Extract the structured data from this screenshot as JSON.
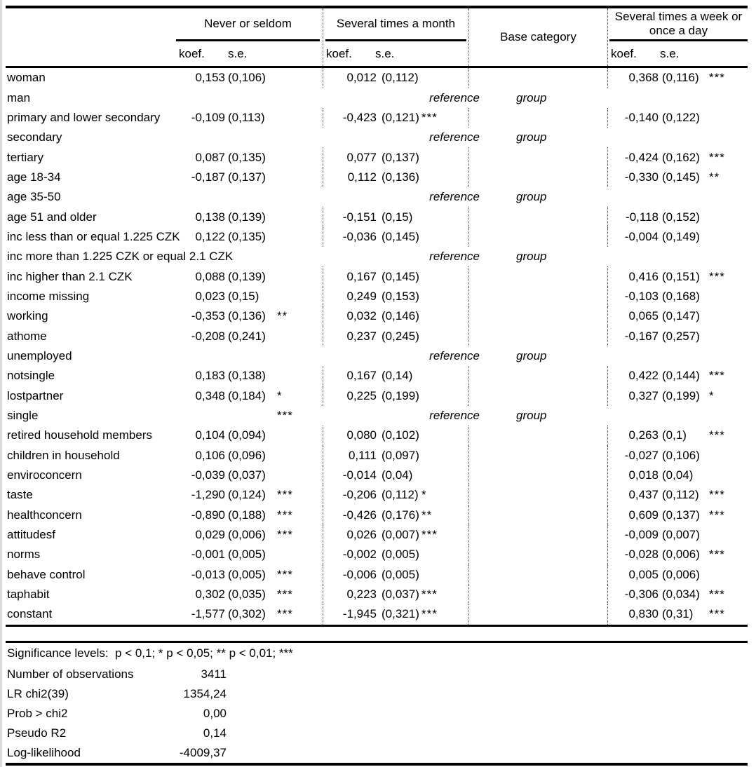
{
  "colors": {
    "text": "#000000",
    "rules": "#000000",
    "dotted_dividers": "#404040",
    "sheet_left_edge": "#d9d9d9",
    "background": "#ffffff"
  },
  "table": {
    "col_groups": [
      {
        "label": "Never or seldom",
        "sub": [
          "koef.",
          "s.e."
        ]
      },
      {
        "label": "Several times a month",
        "sub": [
          "koef.",
          "s.e."
        ]
      },
      {
        "label": "Base category"
      },
      {
        "label": "Several times a week or once a day",
        "sub": [
          "koef.",
          "s.e."
        ]
      }
    ],
    "reference_text": {
      "word1": "reference",
      "word2": "group"
    },
    "rows": [
      {
        "label": "woman",
        "g1": {
          "koef": "0,153",
          "se": "(0,106)",
          "stars": ""
        },
        "g2": {
          "koef": "0,012",
          "se": "(0,112)",
          "stars": ""
        },
        "g3": {
          "koef": "0,368",
          "se": "(0,116)",
          "stars": "***"
        }
      },
      {
        "label": "man",
        "reference": true,
        "g1_stars": ""
      },
      {
        "label": "primary and lower secondary",
        "g1": {
          "koef": "-0,109",
          "se": "(0,113)",
          "stars": ""
        },
        "g2": {
          "koef": "-0,423",
          "se": "(0,121)",
          "stars": "***"
        },
        "g3": {
          "koef": "-0,140",
          "se": "(0,122)",
          "stars": ""
        }
      },
      {
        "label": "secondary",
        "reference": true,
        "g1_stars": ""
      },
      {
        "label": "tertiary",
        "g1": {
          "koef": "0,087",
          "se": "(0,135)",
          "stars": ""
        },
        "g2": {
          "koef": "0,077",
          "se": "(0,137)",
          "stars": ""
        },
        "g3": {
          "koef": "-0,424",
          "se": "(0,162)",
          "stars": "***"
        }
      },
      {
        "label": "age 18-34",
        "g1": {
          "koef": "-0,187",
          "se": "(0,137)",
          "stars": ""
        },
        "g2": {
          "koef": "0,112",
          "se": "(0,136)",
          "stars": ""
        },
        "g3": {
          "koef": "-0,330",
          "se": "(0,145)",
          "stars": "**"
        }
      },
      {
        "label": "age 35-50",
        "reference": true,
        "g1_stars": ""
      },
      {
        "label": "age 51 and older",
        "g1": {
          "koef": "0,138",
          "se": "(0,139)",
          "stars": ""
        },
        "g2": {
          "koef": "-0,151",
          "se": "(0,15)",
          "stars": ""
        },
        "g3": {
          "koef": "-0,118",
          "se": "(0,152)",
          "stars": ""
        }
      },
      {
        "label": "inc less than or equal 1.225 CZK",
        "g1": {
          "koef": "0,122",
          "se": "(0,135)",
          "stars": ""
        },
        "g2": {
          "koef": "-0,036",
          "se": "(0,145)",
          "stars": ""
        },
        "g3": {
          "koef": "-0,004",
          "se": "(0,149)",
          "stars": ""
        }
      },
      {
        "label": "inc more than 1.225 CZK or equal 2.1 CZK",
        "reference": true,
        "g1_stars": ""
      },
      {
        "label": "inc higher than 2.1 CZK",
        "g1": {
          "koef": "0,088",
          "se": "(0,139)",
          "stars": ""
        },
        "g2": {
          "koef": "0,167",
          "se": "(0,145)",
          "stars": ""
        },
        "g3": {
          "koef": "0,416",
          "se": "(0,151)",
          "stars": "***"
        }
      },
      {
        "label": "income missing",
        "g1": {
          "koef": "0,023",
          "se": "(0,15)",
          "stars": ""
        },
        "g2": {
          "koef": "0,249",
          "se": "(0,153)",
          "stars": ""
        },
        "g3": {
          "koef": "-0,103",
          "se": "(0,168)",
          "stars": ""
        }
      },
      {
        "label": "working",
        "g1": {
          "koef": "-0,353",
          "se": "(0,136)",
          "stars": "**"
        },
        "g2": {
          "koef": "0,032",
          "se": "(0,146)",
          "stars": ""
        },
        "g3": {
          "koef": "0,065",
          "se": "(0,147)",
          "stars": ""
        }
      },
      {
        "label": "athome",
        "g1": {
          "koef": "-0,208",
          "se": "(0,241)",
          "stars": ""
        },
        "g2": {
          "koef": "0,237",
          "se": "(0,245)",
          "stars": ""
        },
        "g3": {
          "koef": "-0,167",
          "se": "(0,257)",
          "stars": ""
        }
      },
      {
        "label": "unemployed",
        "reference": true,
        "g1_stars": ""
      },
      {
        "label": "notsingle",
        "g1": {
          "koef": "0,183",
          "se": "(0,138)",
          "stars": ""
        },
        "g2": {
          "koef": "0,167",
          "se": "(0,14)",
          "stars": ""
        },
        "g3": {
          "koef": "0,422",
          "se": "(0,144)",
          "stars": "***"
        }
      },
      {
        "label": "lostpartner",
        "g1": {
          "koef": "0,348",
          "se": "(0,184)",
          "stars": "*"
        },
        "g2": {
          "koef": "0,225",
          "se": "(0,199)",
          "stars": ""
        },
        "g3": {
          "koef": "0,327",
          "se": "(0,199)",
          "stars": "*"
        }
      },
      {
        "label": "single",
        "reference": true,
        "g1_stars": "***"
      },
      {
        "label": "retired household members",
        "g1": {
          "koef": "0,104",
          "se": "(0,094)",
          "stars": ""
        },
        "g2": {
          "koef": "0,080",
          "se": "(0,102)",
          "stars": ""
        },
        "g3": {
          "koef": "0,263",
          "se": "(0,1)",
          "stars": "***"
        }
      },
      {
        "label": "children in household",
        "g1": {
          "koef": "0,106",
          "se": "(0,096)",
          "stars": ""
        },
        "g2": {
          "koef": "0,111",
          "se": "(0,097)",
          "stars": ""
        },
        "g3": {
          "koef": "-0,027",
          "se": "(0,106)",
          "stars": ""
        }
      },
      {
        "label": "enviroconcern",
        "g1": {
          "koef": "-0,039",
          "se": "(0,037)",
          "stars": ""
        },
        "g2": {
          "koef": "-0,014",
          "se": "(0,04)",
          "stars": ""
        },
        "g3": {
          "koef": "0,018",
          "se": "(0,04)",
          "stars": ""
        }
      },
      {
        "label": "taste",
        "g1": {
          "koef": "-1,290",
          "se": "(0,124)",
          "stars": "***"
        },
        "g2": {
          "koef": "-0,206",
          "se": "(0,112)",
          "stars": "*"
        },
        "g3": {
          "koef": "0,437",
          "se": "(0,112)",
          "stars": "***"
        }
      },
      {
        "label": "healthconcern",
        "g1": {
          "koef": "-0,890",
          "se": "(0,188)",
          "stars": "***"
        },
        "g2": {
          "koef": "-0,426",
          "se": "(0,176)",
          "stars": "**"
        },
        "g3": {
          "koef": "0,609",
          "se": "(0,137)",
          "stars": "***"
        }
      },
      {
        "label": "attitudesf",
        "g1": {
          "koef": "0,029",
          "se": "(0,006)",
          "stars": "***"
        },
        "g2": {
          "koef": "0,026",
          "se": "(0,007)",
          "stars": "***"
        },
        "g3": {
          "koef": "-0,009",
          "se": "(0,007)",
          "stars": ""
        }
      },
      {
        "label": "norms",
        "g1": {
          "koef": "-0,001",
          "se": "(0,005)",
          "stars": ""
        },
        "g2": {
          "koef": "-0,002",
          "se": "(0,005)",
          "stars": ""
        },
        "g3": {
          "koef": "-0,028",
          "se": "(0,006)",
          "stars": "***"
        }
      },
      {
        "label": "behave control",
        "g1": {
          "koef": "-0,013",
          "se": "(0,005)",
          "stars": "***"
        },
        "g2": {
          "koef": "-0,006",
          "se": "(0,005)",
          "stars": ""
        },
        "g3": {
          "koef": "0,005",
          "se": "(0,006)",
          "stars": ""
        }
      },
      {
        "label": "taphabit",
        "g1": {
          "koef": "0,302",
          "se": "(0,035)",
          "stars": "***"
        },
        "g2": {
          "koef": "0,223",
          "se": "(0,037)",
          "stars": "***"
        },
        "g3": {
          "koef": "-0,306",
          "se": "(0,034)",
          "stars": "***"
        }
      },
      {
        "label": "constant",
        "g1": {
          "koef": "-1,577",
          "se": "(0,302)",
          "stars": "***"
        },
        "g2": {
          "koef": "-1,945",
          "se": "(0,321)",
          "stars": "***"
        },
        "g3": {
          "koef": "0,830",
          "se": "(0,31)",
          "stars": "***"
        }
      }
    ]
  },
  "footer": {
    "significance": "Significance levels:  p < 0,1; * p < 0,05; ** p < 0,01; ***",
    "stats": [
      {
        "label": "Number of observations",
        "value": "3411"
      },
      {
        "label": "LR chi2(39)",
        "value": "1354,24"
      },
      {
        "label": "Prob > chi2",
        "value": "0,00"
      },
      {
        "label": "Pseudo R2",
        "value": "0,14"
      },
      {
        "label": "Log-likelihood",
        "value": "-4009,37"
      }
    ]
  }
}
